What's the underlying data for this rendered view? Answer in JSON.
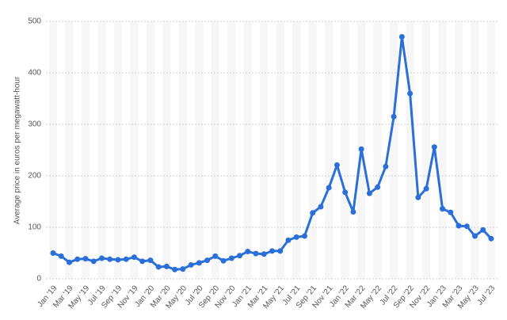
{
  "chart_data": {
    "type": "line",
    "y_label": "Average price in euros per megawatt-hour",
    "categories": [
      "Jan '19",
      null,
      "Mar '19",
      null,
      "May '19",
      null,
      "Jul '19",
      null,
      "Sep '19",
      null,
      "Nov '19",
      null,
      "Jan '20",
      null,
      "Mar '20",
      null,
      "May '20",
      null,
      "Jul '20",
      null,
      "Sep '20",
      null,
      "Nov '20",
      null,
      "Jan '21",
      null,
      "Mar '21",
      null,
      "May '21",
      null,
      "Jul '21",
      null,
      "Sep '21",
      null,
      "Nov '21",
      null,
      "Jan '22",
      null,
      "Mar '22",
      null,
      "May '22",
      null,
      "Jul '22",
      null,
      "Sep '22",
      null,
      "Nov '22",
      null,
      "Jan '23",
      null,
      "Mar '23",
      null,
      "May '23",
      null,
      "Jul '23"
    ],
    "series": [
      {
        "color": "#2b6fd8",
        "values": [
          50,
          44,
          32,
          38,
          39,
          34,
          40,
          38,
          37,
          38,
          42,
          34,
          36,
          23,
          24,
          18,
          19,
          27,
          31,
          36,
          44,
          35,
          40,
          45,
          53,
          49,
          48,
          54,
          54,
          75,
          81,
          83,
          128,
          140,
          177,
          221,
          168,
          130,
          252,
          166,
          178,
          218,
          315,
          470,
          360,
          158,
          175,
          256,
          136,
          129,
          103,
          102,
          83,
          95,
          78
        ]
      }
    ],
    "ylim": [
      0,
      500
    ],
    "yticks": [
      0,
      100,
      200,
      300,
      400,
      500
    ],
    "grid": true
  }
}
